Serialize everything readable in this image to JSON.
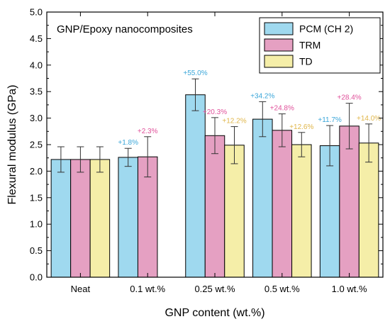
{
  "chart_data": {
    "type": "bar",
    "title": "GNP/Epoxy nanocomposites",
    "xlabel": "GNP content (wt.%)",
    "ylabel": "Flexural modulus (GPa)",
    "ylim": [
      0,
      5.0
    ],
    "yticks": [
      "0.0",
      "0.5",
      "1.0",
      "1.5",
      "2.0",
      "2.5",
      "3.0",
      "3.5",
      "4.0",
      "4.5",
      "5.0"
    ],
    "categories": [
      "Neat",
      "0.1 wt.%",
      "0.25 wt.%",
      "0.5 wt.%",
      "1.0 wt.%"
    ],
    "legend_position": "top-right",
    "grid": false,
    "series": [
      {
        "name": "PCM (CH 2)",
        "color": "#9fd9ef",
        "label_color": "#3aa6d9",
        "values": [
          2.22,
          2.26,
          3.44,
          2.98,
          2.48
        ],
        "errors": [
          0.24,
          0.17,
          0.3,
          0.33,
          0.38
        ],
        "labels": [
          "",
          "+1.8%",
          "+55.0%",
          "+34.2%",
          "+11.7%"
        ]
      },
      {
        "name": "TRM",
        "color": "#e5a0c2",
        "label_color": "#e0509a",
        "values": [
          2.22,
          2.27,
          2.67,
          2.77,
          2.85
        ],
        "errors": [
          0.24,
          0.38,
          0.34,
          0.31,
          0.43
        ],
        "labels": [
          "",
          "+2.3%",
          "+20.3%",
          "+24.8%",
          "+28.4%"
        ]
      },
      {
        "name": "TD",
        "color": "#f5eea8",
        "label_color": "#e0b64a",
        "values": [
          2.22,
          null,
          2.49,
          2.5,
          2.53
        ],
        "errors": [
          0.24,
          null,
          0.35,
          0.23,
          0.36
        ],
        "labels": [
          "",
          "",
          "+12.2%",
          "+12.6%",
          "+14.0%"
        ]
      }
    ]
  }
}
